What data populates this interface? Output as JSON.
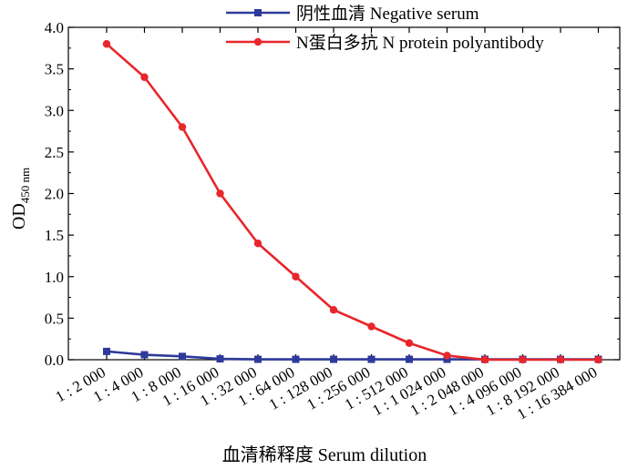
{
  "chart_data": {
    "type": "line",
    "categories": [
      "1 : 2 000",
      "1 : 4 000",
      "1 : 8 000",
      "1 : 16 000",
      "1 : 32 000",
      "1 : 64 000",
      "1 : 128 000",
      "1 : 256 000",
      "1 : 512 000",
      "1 : 1 024 000",
      "1 : 2 048 000",
      "1 : 4 096 000",
      "1 : 8 192 000",
      "1 : 16 384 000"
    ],
    "series": [
      {
        "name": "阴性血清 Negative serum",
        "color": "#2e3a9b",
        "marker": "square",
        "values": [
          0.1,
          0.06,
          0.04,
          0.01,
          0.005,
          0.005,
          0.005,
          0.005,
          0.005,
          0.005,
          0.005,
          0.005,
          0.005,
          0.005
        ]
      },
      {
        "name": "N蛋白多抗 N protein polyantibody",
        "color": "#e8262b",
        "marker": "circle",
        "values": [
          3.8,
          3.4,
          2.8,
          2.0,
          1.4,
          1.0,
          0.6,
          0.4,
          0.2,
          0.05,
          0.0,
          0.0,
          0.0,
          0.0
        ]
      }
    ],
    "xlabel": "血清稀释度 Serum dilution",
    "ylabel": "OD",
    "ylabel_sub": "450 nm",
    "ylim": [
      0,
      4.0
    ],
    "yticks": [
      "0.0",
      "0.5",
      "1.0",
      "1.5",
      "2.0",
      "2.5",
      "3.0",
      "3.5",
      "4.0"
    ],
    "legend_position": "top",
    "grid": false
  }
}
